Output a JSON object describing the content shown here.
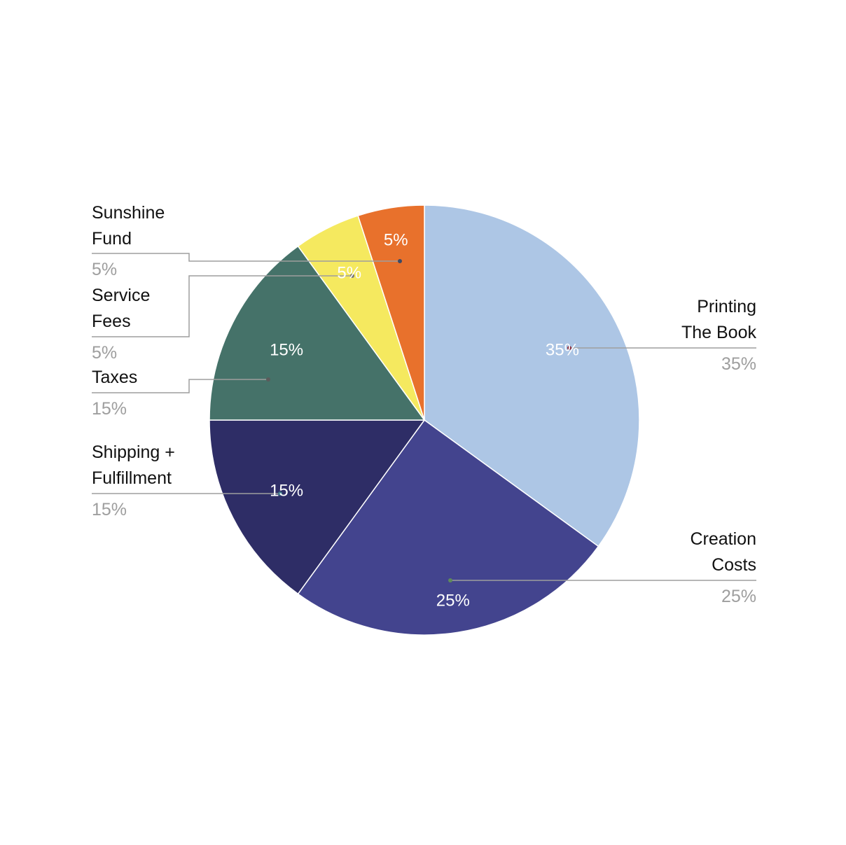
{
  "chart_data": {
    "type": "pie",
    "title": "",
    "start_angle_deg": 0,
    "direction": "clockwise",
    "slices": [
      {
        "label": "Printing The Book",
        "value": 35,
        "percent_label": "35%",
        "color": "#adc6e5",
        "label_lines": [
          "Printing",
          "The Book"
        ]
      },
      {
        "label": "Creation Costs",
        "value": 25,
        "percent_label": "25%",
        "color": "#43448e",
        "label_lines": [
          "Creation",
          "Costs"
        ]
      },
      {
        "label": "Shipping + Fulfillment",
        "value": 15,
        "percent_label": "15%",
        "color": "#2e2d66",
        "label_lines": [
          "Shipping +",
          "Fulfillment"
        ]
      },
      {
        "label": "Taxes",
        "value": 15,
        "percent_label": "15%",
        "color": "#457269",
        "label_lines": [
          "Taxes"
        ]
      },
      {
        "label": "Service Fees",
        "value": 5,
        "percent_label": "5%",
        "color": "#f5e95f",
        "label_lines": [
          "Service",
          "Fees"
        ]
      },
      {
        "label": "Sunshine Fund",
        "value": 5,
        "percent_label": "5%",
        "color": "#e8712c",
        "label_lines": [
          "Sunshine",
          "Fund"
        ]
      }
    ],
    "legend": "none",
    "external_labels": true
  }
}
